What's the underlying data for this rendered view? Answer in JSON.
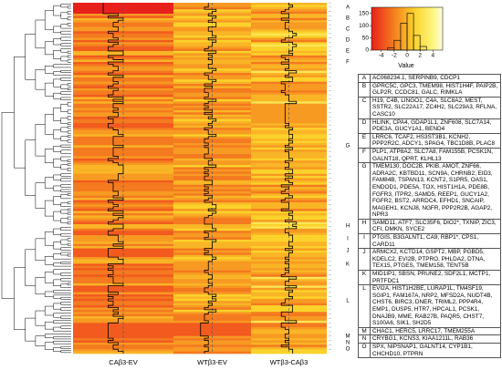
{
  "chart_data": {
    "type": "heatmap",
    "columns": [
      "CAβ3-EV",
      "WTβ3-EV",
      "WTβ3-CAβ3"
    ],
    "color_key": {
      "type": "histogram",
      "bins": [
        -3,
        -2,
        -1,
        0,
        1,
        2,
        3
      ],
      "counts": [
        10,
        40,
        110,
        150,
        60,
        15
      ],
      "xlim": [
        -5.5,
        5.5
      ],
      "xticks": [
        -4,
        -2,
        0,
        2,
        4
      ],
      "ylim": [
        0,
        175
      ],
      "yticks": [
        0,
        50,
        100,
        150
      ],
      "xlabel": "Value"
    },
    "clusters": [
      {
        "id": "A",
        "genes": "AC068234.1, SERPINB9, CDCP1"
      },
      {
        "id": "B",
        "genes": "GPRC5C, GPC3, TMEM98, HIST1H4F, PAIP2B, GLP2R, CCDC81, GALC, RIMKLA"
      },
      {
        "id": "C",
        "genes": "H19, C4B, LINGO1, C4A, SLC8A2, MEST, SSTR2, SLC22A17, ZC4H2, SLC29A3, RFLNA, CASC10"
      },
      {
        "id": "D",
        "genes": "HLINK, CPA4, GDAP1L1, ZNF608, SLC7A14, PDE3A, GUCY1A1, BEND4"
      },
      {
        "id": "E",
        "genes": "LRRC6, TCAF2, HS3ST3B1, KCNH2, PPP2R2C, ADCY1, SPAG4, TBC1D8B, PLAC8"
      },
      {
        "id": "F",
        "genes": "PLP1, ATP8A2, SLC7A8, FAM155B, PCSK1N, GALNT18, QPRT, KLHL13"
      },
      {
        "id": "G",
        "genes": "TMEM130, DOC2B, PKIB, AMOT, ZNF66, ADRA2C, KBTBD11, SCN9A, CHRNB2, EID3, FAM84B, TSPAN13, KCNT2, S1PR5, OAS1, ENDOD1, PDE5A, TOX, HIST1H1A, PDE8B, FGFR3, ITPR2, SAMD5, REEP1, GUCY1A2, FGFR2, BST2, ARRDC4, EFHD1, SNCAIP, MAGEH1, KCNJ8, NGFR, PPP2R2B, AGAP2, NPR3"
      },
      {
        "id": "H",
        "genes": "SAMD11, ATF7, SLC35F6, DIO2*, TXNIP, ZIC3, CFI, DMKN, SYCE2"
      },
      {
        "id": "I",
        "genes": "PTGIS, B3GALNT1, CA9, RBP1*, CPS1, CARD11"
      },
      {
        "id": "J",
        "genes": "ARMCX2, KCTD14, GSPT2, MBP, PGBD5, KDELC2, EVI2B, PTPRO, PHLDA2, DTNA, TEX15, PTGES, TMEM158, TENT5B"
      },
      {
        "id": "K",
        "genes": "MID1IP1, SBSN, PRUNE2, SDF2L1, MCTP1, PRTFDC1"
      },
      {
        "id": "L",
        "genes": "EVI2A, HIST1H2BE, LURAP1L, TM4SF19, SGIP1, FAM167A, NRP2, MFSD2A, NUDT4B, CHST6, BIRC3, DNER, TRIML2, PPP4R4, EMP1, DUSP5, HTR7, HPCAL1, PCSK1, DNAJB9, MME, RAB27B, PAQR5, CHST7, S100A6, SIK1, SH2D5"
      },
      {
        "id": "M",
        "genes": "CHAC1, HERC5, LRRC17, TMEM255A"
      },
      {
        "id": "N",
        "genes": "CRYBG1, KCNS3, KIAA1211L, RAB36"
      },
      {
        "id": "O",
        "genes": "SPX, NIPSNAP1, GALNT14, CYP1B1, CHCHD10, PTPRN"
      }
    ]
  }
}
